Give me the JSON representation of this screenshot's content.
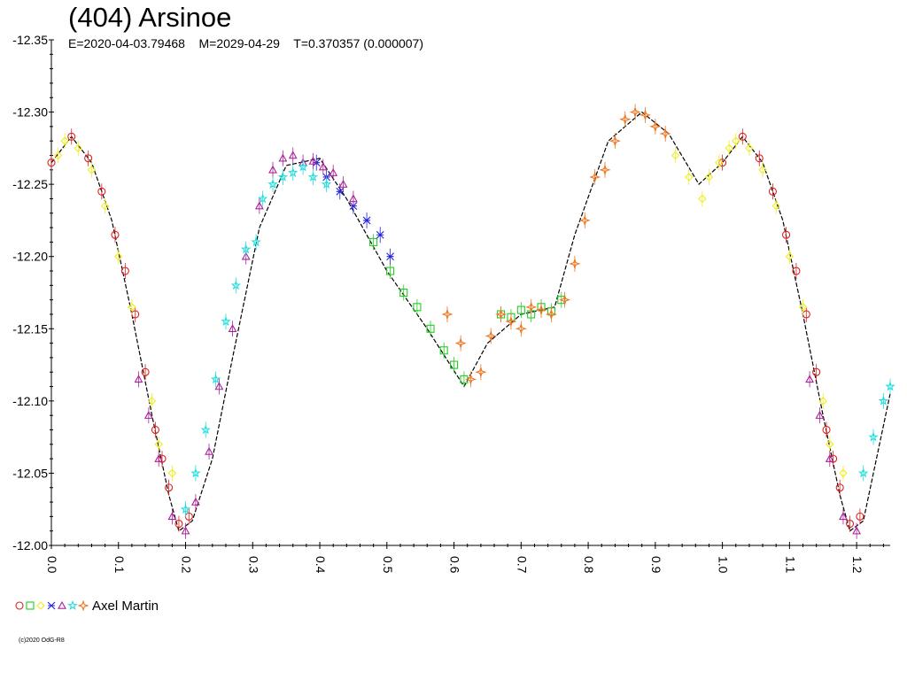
{
  "header": {
    "title": "(404) Arsinoe",
    "epoch_label": "E=2020-04-03.79468",
    "m_label": "M=2029-04-29",
    "period_label": "T=0.370357 (0.000007)"
  },
  "legend": {
    "observer": "Axel Martin",
    "symbols": [
      {
        "shape": "circle-icon",
        "color": "#dd2222"
      },
      {
        "shape": "square-icon",
        "color": "#22cc22"
      },
      {
        "shape": "diamond-icon",
        "color": "#eeee22"
      },
      {
        "shape": "cross-icon",
        "color": "#2222dd"
      },
      {
        "shape": "triangle-icon",
        "color": "#aa2299"
      },
      {
        "shape": "star-icon",
        "color": "#22dddd"
      },
      {
        "shape": "sparkle-icon",
        "color": "#ee7722"
      }
    ]
  },
  "copyright": "(c)2020 OdG-R8",
  "chart_data": {
    "type": "scatter",
    "title": "(404) Arsinoe",
    "xlim": [
      0.0,
      1.25
    ],
    "ylim": [
      -12.35,
      -12.0
    ],
    "x_ticks": [
      "0.0",
      "0.1",
      "0.2",
      "0.3",
      "0.4",
      "0.5",
      "0.6",
      "0.7",
      "0.8",
      "0.9",
      "1.0",
      "1.1",
      "1.2"
    ],
    "y_ticks": [
      "-12.35",
      "-12.30",
      "-12.25",
      "-12.20",
      "-12.15",
      "-12.10",
      "-12.05",
      "-12.00"
    ],
    "fit_curve": [
      [
        0.0,
        -12.265
      ],
      [
        0.03,
        -12.283
      ],
      [
        0.06,
        -12.265
      ],
      [
        0.09,
        -12.225
      ],
      [
        0.12,
        -12.16
      ],
      [
        0.15,
        -12.09
      ],
      [
        0.175,
        -12.035
      ],
      [
        0.19,
        -12.01
      ],
      [
        0.21,
        -12.017
      ],
      [
        0.24,
        -12.06
      ],
      [
        0.27,
        -12.13
      ],
      [
        0.31,
        -12.22
      ],
      [
        0.35,
        -12.263
      ],
      [
        0.4,
        -12.268
      ],
      [
        0.44,
        -12.24
      ],
      [
        0.5,
        -12.19
      ],
      [
        0.56,
        -12.15
      ],
      [
        0.615,
        -12.11
      ],
      [
        0.65,
        -12.14
      ],
      [
        0.7,
        -12.16
      ],
      [
        0.75,
        -12.165
      ],
      [
        0.78,
        -12.215
      ],
      [
        0.83,
        -12.28
      ],
      [
        0.88,
        -12.3
      ],
      [
        0.92,
        -12.285
      ],
      [
        0.965,
        -12.25
      ],
      [
        1.0,
        -12.265
      ],
      [
        1.03,
        -12.283
      ],
      [
        1.06,
        -12.265
      ],
      [
        1.09,
        -12.225
      ],
      [
        1.12,
        -12.16
      ],
      [
        1.15,
        -12.09
      ],
      [
        1.175,
        -12.035
      ],
      [
        1.19,
        -12.01
      ],
      [
        1.21,
        -12.017
      ],
      [
        1.25,
        -12.105
      ]
    ],
    "series": [
      {
        "marker": "circle",
        "color": "#dd2222",
        "x": [
          0.0,
          0.03,
          0.055,
          0.075,
          0.095,
          0.11,
          0.125,
          0.14,
          0.155,
          0.165,
          0.175,
          0.19,
          0.205,
          1.0,
          1.03,
          1.055,
          1.075,
          1.095,
          1.11,
          1.125,
          1.14,
          1.155,
          1.165,
          1.175,
          1.19,
          1.205
        ],
        "y": [
          -12.265,
          -12.283,
          -12.268,
          -12.245,
          -12.215,
          -12.19,
          -12.16,
          -12.12,
          -12.08,
          -12.06,
          -12.04,
          -12.015,
          -12.02,
          -12.265,
          -12.283,
          -12.268,
          -12.245,
          -12.215,
          -12.19,
          -12.16,
          -12.12,
          -12.08,
          -12.06,
          -12.04,
          -12.015,
          -12.02
        ]
      },
      {
        "marker": "square",
        "color": "#22cc22",
        "x": [
          0.48,
          0.505,
          0.525,
          0.545,
          0.565,
          0.585,
          0.6,
          0.615,
          0.67,
          0.685,
          0.7,
          0.715,
          0.73,
          0.745,
          0.76
        ],
        "y": [
          -12.21,
          -12.19,
          -12.175,
          -12.165,
          -12.15,
          -12.135,
          -12.125,
          -12.115,
          -12.16,
          -12.158,
          -12.163,
          -12.16,
          -12.165,
          -12.162,
          -12.17
        ]
      },
      {
        "marker": "diamond",
        "color": "#eeee22",
        "x": [
          0.01,
          0.02,
          0.04,
          0.06,
          0.08,
          0.1,
          0.12,
          0.15,
          0.16,
          0.18,
          0.93,
          0.95,
          0.97,
          0.98,
          0.995,
          1.01,
          1.02,
          1.04,
          1.06,
          1.08,
          1.1,
          1.12,
          1.15,
          1.16,
          1.18
        ],
        "y": [
          -12.27,
          -12.28,
          -12.275,
          -12.26,
          -12.235,
          -12.2,
          -12.165,
          -12.1,
          -12.07,
          -12.05,
          -12.27,
          -12.255,
          -12.24,
          -12.255,
          -12.265,
          -12.275,
          -12.28,
          -12.275,
          -12.26,
          -12.235,
          -12.2,
          -12.165,
          -12.1,
          -12.07,
          -12.05
        ]
      },
      {
        "marker": "cross",
        "color": "#2222dd",
        "x": [
          0.395,
          0.41,
          0.43,
          0.45,
          0.47,
          0.49,
          0.505
        ],
        "y": [
          -12.265,
          -12.255,
          -12.245,
          -12.235,
          -12.225,
          -12.215,
          -12.2
        ]
      },
      {
        "marker": "triangle",
        "color": "#aa2299",
        "x": [
          0.13,
          0.145,
          0.16,
          0.18,
          0.2,
          0.215,
          0.235,
          0.25,
          0.27,
          0.29,
          0.31,
          0.33,
          0.345,
          0.36,
          0.375,
          0.39,
          0.405,
          0.42,
          0.435,
          0.45,
          1.13,
          1.145,
          1.16,
          1.18,
          1.2
        ],
        "y": [
          -12.115,
          -12.09,
          -12.06,
          -12.02,
          -12.01,
          -12.03,
          -12.065,
          -12.11,
          -12.15,
          -12.2,
          -12.235,
          -12.26,
          -12.268,
          -12.27,
          -12.265,
          -12.266,
          -12.262,
          -12.258,
          -12.25,
          -12.24,
          -12.115,
          -12.09,
          -12.06,
          -12.02,
          -12.01
        ]
      },
      {
        "marker": "star",
        "color": "#22dddd",
        "x": [
          0.2,
          0.215,
          0.23,
          0.245,
          0.26,
          0.275,
          0.29,
          0.305,
          0.315,
          0.33,
          0.345,
          0.36,
          0.375,
          0.39,
          0.41,
          1.21,
          1.225,
          1.24,
          1.25
        ],
        "y": [
          -12.025,
          -12.05,
          -12.08,
          -12.115,
          -12.155,
          -12.18,
          -12.205,
          -12.21,
          -12.24,
          -12.25,
          -12.255,
          -12.258,
          -12.262,
          -12.255,
          -12.25,
          -12.05,
          -12.075,
          -12.1,
          -12.11
        ]
      },
      {
        "marker": "sparkle",
        "color": "#ee7722",
        "x": [
          0.59,
          0.61,
          0.625,
          0.64,
          0.655,
          0.67,
          0.685,
          0.7,
          0.715,
          0.73,
          0.745,
          0.765,
          0.78,
          0.795,
          0.81,
          0.825,
          0.84,
          0.855,
          0.87,
          0.885,
          0.9,
          0.915
        ],
        "y": [
          -12.16,
          -12.14,
          -12.115,
          -12.12,
          -12.145,
          -12.16,
          -12.155,
          -12.15,
          -12.165,
          -12.163,
          -12.16,
          -12.17,
          -12.195,
          -12.225,
          -12.255,
          -12.26,
          -12.28,
          -12.295,
          -12.3,
          -12.298,
          -12.29,
          -12.285
        ]
      }
    ]
  }
}
